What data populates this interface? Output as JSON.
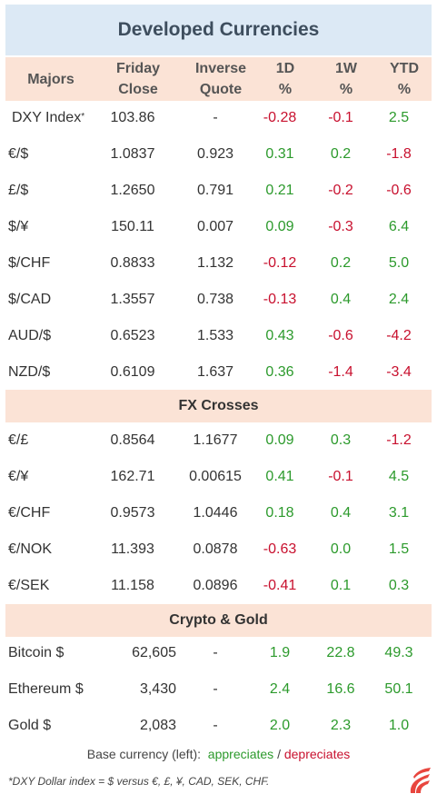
{
  "title": "Developed Currencies",
  "headers": {
    "majors": "Majors",
    "friday_1": "Friday",
    "friday_2": "Close",
    "inverse_1": "Inverse",
    "inverse_2": "Quote",
    "d1_1": "1D",
    "d1_2": "%",
    "w1_1": "1W",
    "w1_2": "%",
    "ytd_1": "YTD",
    "ytd_2": "%"
  },
  "majors": [
    {
      "pair": "DXY Index",
      "sup": "*",
      "close": "103.86",
      "inverse": "-",
      "d1": "-0.28",
      "w1": "-0.1",
      "ytd": "2.5"
    },
    {
      "pair": "€/$",
      "close": "1.0837",
      "inverse": "0.923",
      "d1": "0.31",
      "w1": "0.2",
      "ytd": "-1.8"
    },
    {
      "pair": "£/$",
      "close": "1.2650",
      "inverse": "0.791",
      "d1": "0.21",
      "w1": "-0.2",
      "ytd": "-0.6"
    },
    {
      "pair": "$/¥",
      "close": "150.11",
      "inverse": "0.007",
      "d1": "0.09",
      "w1": "-0.3",
      "ytd": "6.4"
    },
    {
      "pair": "$/CHF",
      "close": "0.8833",
      "inverse": "1.132",
      "d1": "-0.12",
      "w1": "0.2",
      "ytd": "5.0"
    },
    {
      "pair": "$/CAD",
      "close": "1.3557",
      "inverse": "0.738",
      "d1": "-0.13",
      "w1": "0.4",
      "ytd": "2.4"
    },
    {
      "pair": "AUD/$",
      "close": "0.6523",
      "inverse": "1.533",
      "d1": "0.43",
      "w1": "-0.6",
      "ytd": "-4.2"
    },
    {
      "pair": "NZD/$",
      "close": "0.6109",
      "inverse": "1.637",
      "d1": "0.36",
      "w1": "-1.4",
      "ytd": "-3.4"
    }
  ],
  "crosses_title": "FX Crosses",
  "crosses": [
    {
      "pair": "€/£",
      "close": "0.8564",
      "inverse": "1.1677",
      "d1": "0.09",
      "w1": "0.3",
      "ytd": "-1.2"
    },
    {
      "pair": "€/¥",
      "close": "162.71",
      "inverse": "0.00615",
      "d1": "0.41",
      "w1": "-0.1",
      "ytd": "4.5"
    },
    {
      "pair": "€/CHF",
      "close": "0.9573",
      "inverse": "1.0446",
      "d1": "0.18",
      "w1": "0.4",
      "ytd": "3.1"
    },
    {
      "pair": "€/NOK",
      "close": "11.393",
      "inverse": "0.0878",
      "d1": "-0.63",
      "w1": "0.0",
      "ytd": "1.5"
    },
    {
      "pair": "€/SEK",
      "close": "11.158",
      "inverse": "0.0896",
      "d1": "-0.41",
      "w1": "0.1",
      "ytd": "0.3"
    }
  ],
  "crypto_title": "Crypto  &  Gold",
  "crypto": [
    {
      "pair": "Bitcoin $",
      "close": "62,605",
      "inverse": "-",
      "d1": "1.9",
      "w1": "22.8",
      "ytd": "49.3"
    },
    {
      "pair": "Ethereum $",
      "close": "3,430",
      "inverse": "-",
      "d1": "2.4",
      "w1": "16.6",
      "ytd": "50.1"
    },
    {
      "pair": "Gold $",
      "close": "2,083",
      "inverse": "-",
      "d1": "2.0",
      "w1": "2.3",
      "ytd": "1.0"
    }
  ],
  "legend": {
    "prefix": "Base currency (left):  ",
    "up": "appreciates",
    "sep": " / ",
    "down": "depreciates"
  },
  "footnote": "*DXY Dollar index = $ versus €, £, ¥, CAD, SEK, CHF.",
  "colors": {
    "positive": "#2c9a2c",
    "negative": "#c8102e",
    "header_bg": "#fbe3d6",
    "title_bg": "#dce9f5"
  },
  "logo_icon": "flame-logo-icon"
}
